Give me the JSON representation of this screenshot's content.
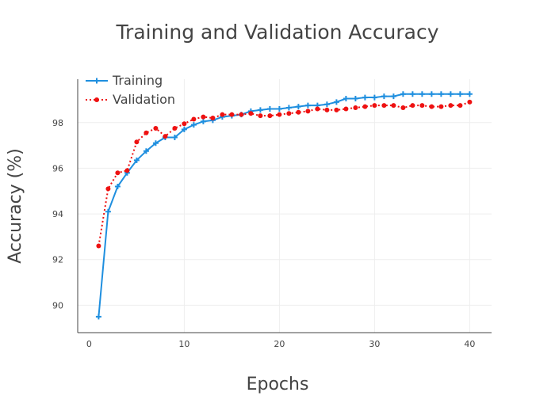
{
  "chart_data": {
    "type": "line",
    "title": "Training and Validation Accuracy",
    "xlabel": "Epochs",
    "ylabel": "Accuracy (%)",
    "xlim": [
      -1.2,
      42.3
    ],
    "ylim": [
      88.8,
      99.9
    ],
    "xticks": [
      0,
      10,
      20,
      30,
      40
    ],
    "yticks": [
      90,
      92,
      94,
      96,
      98
    ],
    "grid": true,
    "legend_position": "top-left",
    "x": [
      1,
      2,
      3,
      4,
      5,
      6,
      7,
      8,
      9,
      10,
      11,
      12,
      13,
      14,
      15,
      16,
      17,
      18,
      19,
      20,
      21,
      22,
      23,
      24,
      25,
      26,
      27,
      28,
      29,
      30,
      31,
      32,
      33,
      34,
      35,
      36,
      37,
      38,
      39,
      40
    ],
    "series": [
      {
        "name": "Training",
        "color": "#1f8fdf",
        "line_style": "solid",
        "marker": "cross",
        "values": [
          89.5,
          94.1,
          95.2,
          95.8,
          96.35,
          96.75,
          97.1,
          97.35,
          97.35,
          97.7,
          97.9,
          98.05,
          98.1,
          98.25,
          98.3,
          98.35,
          98.5,
          98.55,
          98.6,
          98.6,
          98.65,
          98.7,
          98.75,
          98.75,
          98.8,
          98.9,
          99.05,
          99.05,
          99.1,
          99.1,
          99.15,
          99.15,
          99.25,
          99.25,
          99.25,
          99.25,
          99.25,
          99.25,
          99.25,
          99.25
        ]
      },
      {
        "name": "Validation",
        "color": "#ee1111",
        "line_style": "dotted",
        "marker": "circle",
        "values": [
          92.6,
          95.1,
          95.8,
          95.9,
          97.15,
          97.55,
          97.75,
          97.4,
          97.75,
          97.95,
          98.15,
          98.25,
          98.2,
          98.35,
          98.35,
          98.35,
          98.4,
          98.3,
          98.3,
          98.35,
          98.4,
          98.45,
          98.5,
          98.6,
          98.55,
          98.55,
          98.6,
          98.65,
          98.7,
          98.75,
          98.75,
          98.75,
          98.65,
          98.75,
          98.75,
          98.7,
          98.7,
          98.75,
          98.75,
          98.9
        ]
      }
    ]
  }
}
